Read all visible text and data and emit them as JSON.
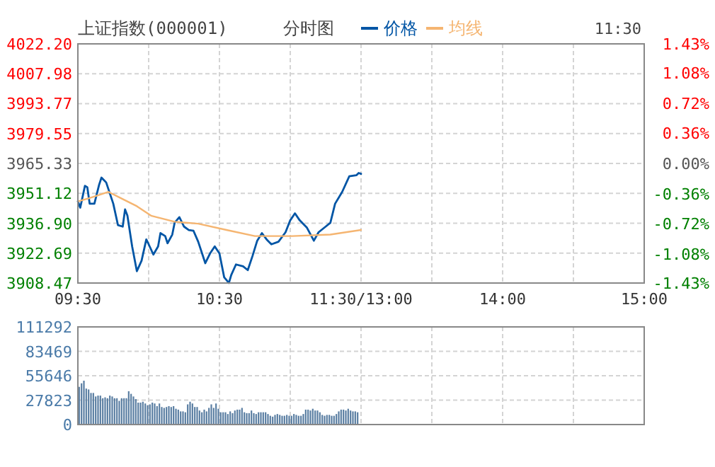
{
  "chart_data": [
    {
      "type": "line",
      "title": "上证指数(000001)",
      "subtitle": "分时图",
      "annotations": [
        "11:30"
      ],
      "legend": "top",
      "grid": true,
      "categories": [
        "09:30",
        null,
        null,
        null,
        null,
        null,
        null,
        null,
        null,
        null,
        null,
        null,
        null,
        null,
        null,
        null,
        null,
        null,
        null,
        null,
        null,
        null,
        null,
        null,
        null,
        null,
        null,
        null,
        null,
        null,
        null,
        null,
        null,
        null,
        null,
        null,
        null,
        null,
        null,
        null,
        null,
        null,
        null,
        null,
        null,
        null,
        null,
        null,
        null,
        null,
        null,
        null,
        null,
        null,
        null,
        null,
        null,
        null,
        null,
        null,
        "10:30",
        null,
        null,
        null,
        null,
        null,
        null,
        null,
        null,
        null,
        null,
        null,
        null,
        null,
        null,
        null,
        null,
        null,
        null,
        null,
        null,
        null,
        null,
        null,
        null,
        null,
        null,
        null,
        null,
        null,
        null,
        null,
        null,
        null,
        null,
        null,
        null,
        null,
        null,
        null,
        null,
        null,
        null,
        null,
        null,
        null,
        null,
        null,
        null,
        null,
        null,
        null,
        null,
        null,
        null,
        null,
        null,
        null,
        null,
        null,
        "11:30/13:00",
        null,
        null,
        null,
        null,
        null,
        null,
        null,
        null,
        null,
        null,
        null,
        null,
        null,
        null,
        null,
        null,
        null,
        null,
        null,
        null,
        null,
        null,
        null,
        null,
        null,
        null,
        null,
        null,
        null,
        null,
        null,
        null,
        null,
        null,
        null,
        null,
        null,
        null,
        null,
        null,
        null,
        null,
        null,
        null,
        null,
        null,
        null,
        null,
        null,
        null,
        null,
        null,
        null,
        null,
        null,
        null,
        null,
        null,
        null,
        "14:00",
        null,
        null,
        null,
        null,
        null,
        null,
        null,
        null,
        null,
        null,
        null,
        null,
        null,
        null,
        null,
        null,
        null,
        null,
        null,
        null,
        null,
        null,
        null,
        null,
        null,
        null,
        null,
        null,
        null,
        null,
        null,
        null,
        null,
        null,
        null,
        null,
        null,
        null,
        null,
        null,
        null,
        null,
        null,
        null,
        null,
        null,
        null,
        null,
        null,
        null,
        null,
        null,
        null,
        null,
        null,
        null,
        null,
        null,
        null,
        "15:00"
      ],
      "ylim": [
        3908.47,
        4022.2
      ],
      "yticks": [
        {
          "value": 4022.2,
          "label": "4022.20"
        },
        4007.98,
        3993.77,
        3979.55,
        3965.33,
        3951.12,
        {
          "value": 3936.9,
          "label": "3936.90"
        },
        3922.69,
        3908.47
      ],
      "y2lim": [
        -1.43,
        1.43
      ],
      "y2ticks": [
        {
          "value": 1.43,
          "label": "1.43%"
        },
        {
          "value": 1.08,
          "label": "1.08%"
        },
        {
          "value": 0.72,
          "label": "0.72%"
        },
        {
          "value": 0.36,
          "label": "0.36%"
        },
        {
          "value": 0,
          "label": "0.00%"
        },
        {
          "value": -0.36,
          "label": "-0.36%"
        },
        {
          "value": -0.72,
          "label": "-0.72%"
        },
        {
          "value": -1.08,
          "label": "-1.08%"
        },
        {
          "value": -1.43,
          "label": "-1.43%"
        }
      ],
      "series": [
        {
          "name": "价格",
          "color": "#0055a5",
          "values": [
            3947.3,
            3944.3,
            null,
            3954.7,
            3954.0,
            3946.2,
            null,
            3946.2,
            null,
            3955.2,
            3958.6,
            null,
            3956.3,
            null,
            null,
            3946.2,
            null,
            3936.0,
            null,
            3935.3,
            3943.5,
            3940.5,
            null,
            3925.9,
            null,
            3914.1,
            null,
            3919.1,
            null,
            3929.2,
            3926.9,
            null,
            3922.0,
            null,
            3925.9,
            3932.2,
            null,
            3930.8,
            3927.4,
            null,
            3931.5,
            3937.1,
            null,
            3939.8,
            null,
            3935.3,
            null,
            3933.7,
            null,
            3933.3,
            null,
            3928.1,
            null,
            null,
            3917.9,
            null,
            3922.5,
            null,
            3925.9,
            null,
            3922.5,
            null,
            3911.2,
            null,
            3908.5,
            3912.3,
            null,
            3917.3,
            null,
            null,
            3916.4,
            null,
            3914.6,
            null,
            3921.3,
            null,
            3928.6,
            null,
            3932.2,
            null,
            3929.2,
            null,
            3926.9,
            null,
            null,
            3928.1,
            null,
            null,
            3932.6,
            null,
            3938.3,
            null,
            3941.6,
            null,
            3938.3,
            null,
            null,
            3934.9,
            null,
            null,
            3928.6,
            null,
            3932.6,
            null,
            null,
            3935.3,
            null,
            3937.1,
            null,
            3946.2,
            null,
            null,
            3951.8,
            null,
            null,
            3959.2,
            null,
            null,
            3959.7,
            3960.8,
            3960.4,
            null,
            null,
            null,
            null,
            null,
            null,
            null,
            null,
            null,
            null,
            null,
            null,
            null,
            null,
            null,
            null,
            null,
            null,
            null,
            null,
            null,
            null,
            null,
            null,
            null,
            null,
            null,
            null,
            null,
            null,
            null,
            null,
            null,
            null,
            null,
            null,
            null,
            null,
            null,
            null,
            null,
            null,
            null,
            null,
            null,
            null,
            null,
            null,
            null,
            null,
            null,
            null,
            null,
            null,
            null,
            null,
            null,
            null,
            null,
            null,
            null,
            null,
            null,
            null,
            null,
            null,
            null,
            null,
            null,
            null,
            null,
            null,
            null,
            null,
            null,
            null,
            null,
            null,
            null,
            null,
            null,
            null,
            null,
            null,
            null,
            null,
            null,
            null,
            null,
            null,
            null,
            null,
            null,
            null,
            null,
            null,
            null,
            null,
            null,
            null,
            null,
            null,
            null,
            null,
            null,
            null,
            null,
            null,
            null,
            null,
            null,
            null,
            null,
            null,
            null,
            null,
            null,
            null,
            null,
            null
          ]
        },
        {
          "name": "均线",
          "color": "#f5b571",
          "values": [
            3947.3,
            null,
            null,
            null,
            null,
            3948.9,
            null,
            null,
            null,
            null,
            null,
            null,
            null,
            3951.8,
            null,
            null,
            null,
            null,
            null,
            3948.4,
            null,
            null,
            null,
            null,
            null,
            3945.0,
            null,
            null,
            null,
            null,
            null,
            3940.5,
            null,
            null,
            null,
            null,
            null,
            null,
            null,
            null,
            null,
            3937.6,
            null,
            null,
            null,
            null,
            null,
            null,
            null,
            null,
            null,
            3936.7,
            null,
            null,
            null,
            null,
            null,
            null,
            null,
            null,
            null,
            null,
            null,
            3933.7,
            null,
            null,
            null,
            null,
            null,
            null,
            null,
            null,
            null,
            null,
            null,
            3930.8,
            null,
            null,
            null,
            null,
            null,
            null,
            null,
            null,
            null,
            null,
            null,
            null,
            null,
            null,
            null,
            3930.8,
            null,
            null,
            null,
            null,
            null,
            null,
            null,
            null,
            null,
            null,
            null,
            null,
            null,
            null,
            null,
            3931.5,
            null,
            null,
            null,
            null,
            null,
            null,
            null,
            null,
            null,
            null,
            null,
            null,
            3933.7,
            null,
            null,
            null,
            null,
            null,
            null,
            null,
            null,
            null,
            null,
            null,
            null,
            null,
            null,
            null,
            null,
            null,
            null,
            null,
            null,
            null,
            null,
            null,
            null,
            null,
            null,
            null,
            null,
            null,
            null,
            null,
            null,
            null,
            null,
            null,
            null,
            null,
            null,
            null,
            null,
            null,
            null,
            null,
            null,
            null,
            null,
            null,
            null,
            null,
            null,
            null,
            null,
            null,
            null,
            null,
            null,
            null,
            null,
            null,
            null,
            null,
            null,
            null,
            null,
            null,
            null,
            null,
            null,
            null,
            null,
            null,
            null,
            null,
            null,
            null,
            null,
            null,
            null,
            null,
            null,
            null,
            null,
            null,
            null,
            null,
            null,
            null,
            null,
            null,
            null,
            null,
            null,
            null,
            null,
            null,
            null,
            null,
            null,
            null,
            null,
            null,
            null,
            null,
            null,
            null,
            null,
            null,
            null,
            null,
            null,
            null,
            null,
            null,
            null,
            null,
            null,
            null,
            null,
            null,
            null
          ]
        }
      ]
    },
    {
      "type": "bar",
      "color": "#5b7fa3",
      "grid": true,
      "tick_labels": "y",
      "categories": [
        null,
        null,
        null,
        null,
        null,
        null,
        null,
        null,
        null,
        null,
        null,
        null,
        null,
        null,
        null,
        null,
        null,
        null,
        null,
        null,
        null,
        null,
        null,
        null,
        null,
        null,
        null,
        null,
        null,
        null,
        null,
        null,
        null,
        null,
        null,
        null,
        null,
        null,
        null,
        null,
        null,
        null,
        null,
        null,
        null,
        null,
        null,
        null,
        null,
        null,
        null,
        null,
        null,
        null,
        null,
        null,
        null,
        null,
        null,
        null,
        null,
        null,
        null,
        null,
        null,
        null,
        null,
        null,
        null,
        null,
        null,
        null,
        null,
        null,
        null,
        null,
        null,
        null,
        null,
        null,
        null,
        null,
        null,
        null,
        null,
        null,
        null,
        null,
        null,
        null,
        null,
        null,
        null,
        null,
        null,
        null,
        null,
        null,
        null,
        null,
        null,
        null,
        null,
        null,
        null,
        null,
        null,
        null,
        null,
        null,
        null,
        null,
        null,
        null,
        null,
        null,
        null,
        null,
        null,
        null,
        null,
        null,
        null,
        null,
        null,
        null,
        null,
        null,
        null,
        null,
        null,
        null,
        null,
        null,
        null,
        null,
        null,
        null,
        null,
        null,
        null,
        null,
        null,
        null,
        null,
        null,
        null,
        null,
        null,
        null,
        null,
        null,
        null,
        null,
        null,
        null,
        null,
        null,
        null,
        null,
        null,
        null,
        null,
        null,
        null,
        null,
        null,
        null,
        null,
        null,
        null,
        null,
        null,
        null,
        null,
        null,
        null,
        null,
        null,
        null,
        null,
        null,
        null,
        null,
        null,
        null,
        null,
        null,
        null,
        null,
        null,
        null,
        null,
        null,
        null,
        null,
        null,
        null,
        null,
        null,
        null,
        null,
        null,
        null,
        null,
        null,
        null,
        null,
        null,
        null,
        null,
        null,
        null,
        null,
        null,
        null,
        null,
        null,
        null,
        null,
        null,
        null,
        null,
        null,
        null,
        null,
        null,
        null,
        null,
        null,
        null,
        null,
        null,
        null,
        null,
        null,
        null,
        null,
        null,
        null,
        null
      ],
      "ylim": [
        0,
        111292
      ],
      "yticks": [
        0,
        27823,
        55646,
        83469,
        111292
      ],
      "values": [
        null,
        43000,
        47000,
        50000,
        41000,
        40000,
        36000,
        36000,
        32000,
        33000,
        33000,
        30000,
        31000,
        30000,
        33000,
        32000,
        30000,
        30000,
        27000,
        30000,
        30000,
        30000,
        38000,
        35000,
        32000,
        29000,
        25000,
        25000,
        26000,
        24000,
        22000,
        23000,
        25000,
        24000,
        21000,
        24000,
        20000,
        19000,
        20000,
        21000,
        20000,
        21000,
        18000,
        17000,
        15000,
        15000,
        14000,
        23000,
        26000,
        24000,
        20000,
        20000,
        16000,
        14000,
        17000,
        15000,
        19000,
        23000,
        19000,
        24000,
        18000,
        14000,
        14000,
        14000,
        12000,
        15000,
        13000,
        16000,
        17000,
        17000,
        19000,
        14000,
        13000,
        13000,
        16000,
        13000,
        12000,
        14000,
        14000,
        14000,
        14000,
        12000,
        10000,
        9000,
        11000,
        12000,
        11000,
        10000,
        10000,
        11000,
        10000,
        10000,
        12000,
        11000,
        10000,
        10000,
        12000,
        17000,
        17000,
        16000,
        18000,
        16000,
        16000,
        14000,
        11000,
        10000,
        11000,
        11000,
        10000,
        10000,
        12000,
        15000,
        17000,
        17000,
        16000,
        18000,
        16000,
        15000,
        15000,
        14000,
        null,
        null,
        null,
        null,
        null,
        null,
        null,
        null,
        null,
        null,
        null,
        null,
        null,
        null,
        null,
        null,
        null,
        null,
        null,
        null,
        null,
        null,
        null,
        null,
        null,
        null,
        null,
        null,
        null,
        null,
        null,
        null,
        null,
        null,
        null,
        null,
        null,
        null,
        null,
        null,
        null,
        null,
        null,
        null,
        null,
        null,
        null,
        null,
        null,
        null,
        null,
        null,
        null,
        null,
        null,
        null,
        null,
        null,
        null,
        null,
        null,
        null,
        null,
        null,
        null,
        null,
        null,
        null,
        null,
        null,
        null,
        null,
        null,
        null,
        null,
        null,
        null,
        null,
        null,
        null,
        null,
        null,
        null,
        null,
        null,
        null,
        null,
        null,
        null,
        null,
        null,
        null,
        null,
        null,
        null,
        null,
        null,
        null,
        null,
        null,
        null,
        null,
        null,
        null,
        null,
        null,
        null,
        null,
        null,
        null,
        null,
        null,
        null,
        null,
        null,
        null,
        null,
        null,
        null,
        null,
        null
      ]
    }
  ]
}
